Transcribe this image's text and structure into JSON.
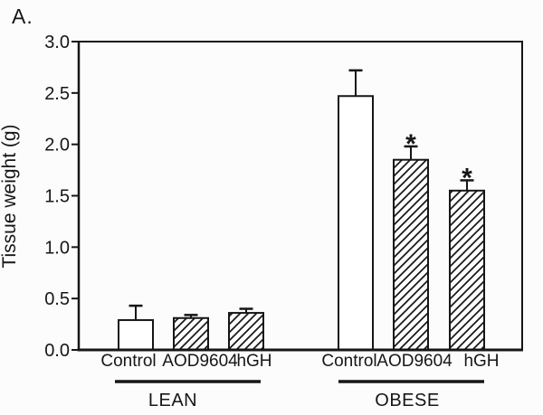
{
  "panel_label": "A.",
  "colors": {
    "ink": "#161616",
    "paper": "#fcfcfc",
    "bar_fill": "#ffffff"
  },
  "chart_data": {
    "type": "bar",
    "title": "",
    "xlabel": "",
    "ylabel": "Tissue weight (g)",
    "ylim": [
      0,
      3.0
    ],
    "yticks": [
      "0.0",
      "0.5",
      "1.0",
      "1.5",
      "2.0",
      "2.5",
      "3.0"
    ],
    "grid": false,
    "legend": "none",
    "error_bars": "upper only, capped",
    "hatch_style": "forward-diagonal",
    "groups": [
      {
        "label": "LEAN",
        "categories": [
          "Control",
          "AOD9604",
          "hGH"
        ],
        "values": [
          0.29,
          0.31,
          0.36
        ],
        "errors_upper": [
          0.14,
          0.03,
          0.04
        ],
        "significance": [
          "",
          "",
          ""
        ],
        "fills": [
          "open",
          "hatched",
          "hatched"
        ]
      },
      {
        "label": "OBESE",
        "categories": [
          "Control",
          "AOD9604",
          "hGH"
        ],
        "values": [
          2.47,
          1.85,
          1.55
        ],
        "errors_upper": [
          0.25,
          0.13,
          0.1
        ],
        "significance": [
          "",
          "*",
          "*"
        ],
        "fills": [
          "open",
          "hatched",
          "hatched"
        ]
      }
    ]
  }
}
